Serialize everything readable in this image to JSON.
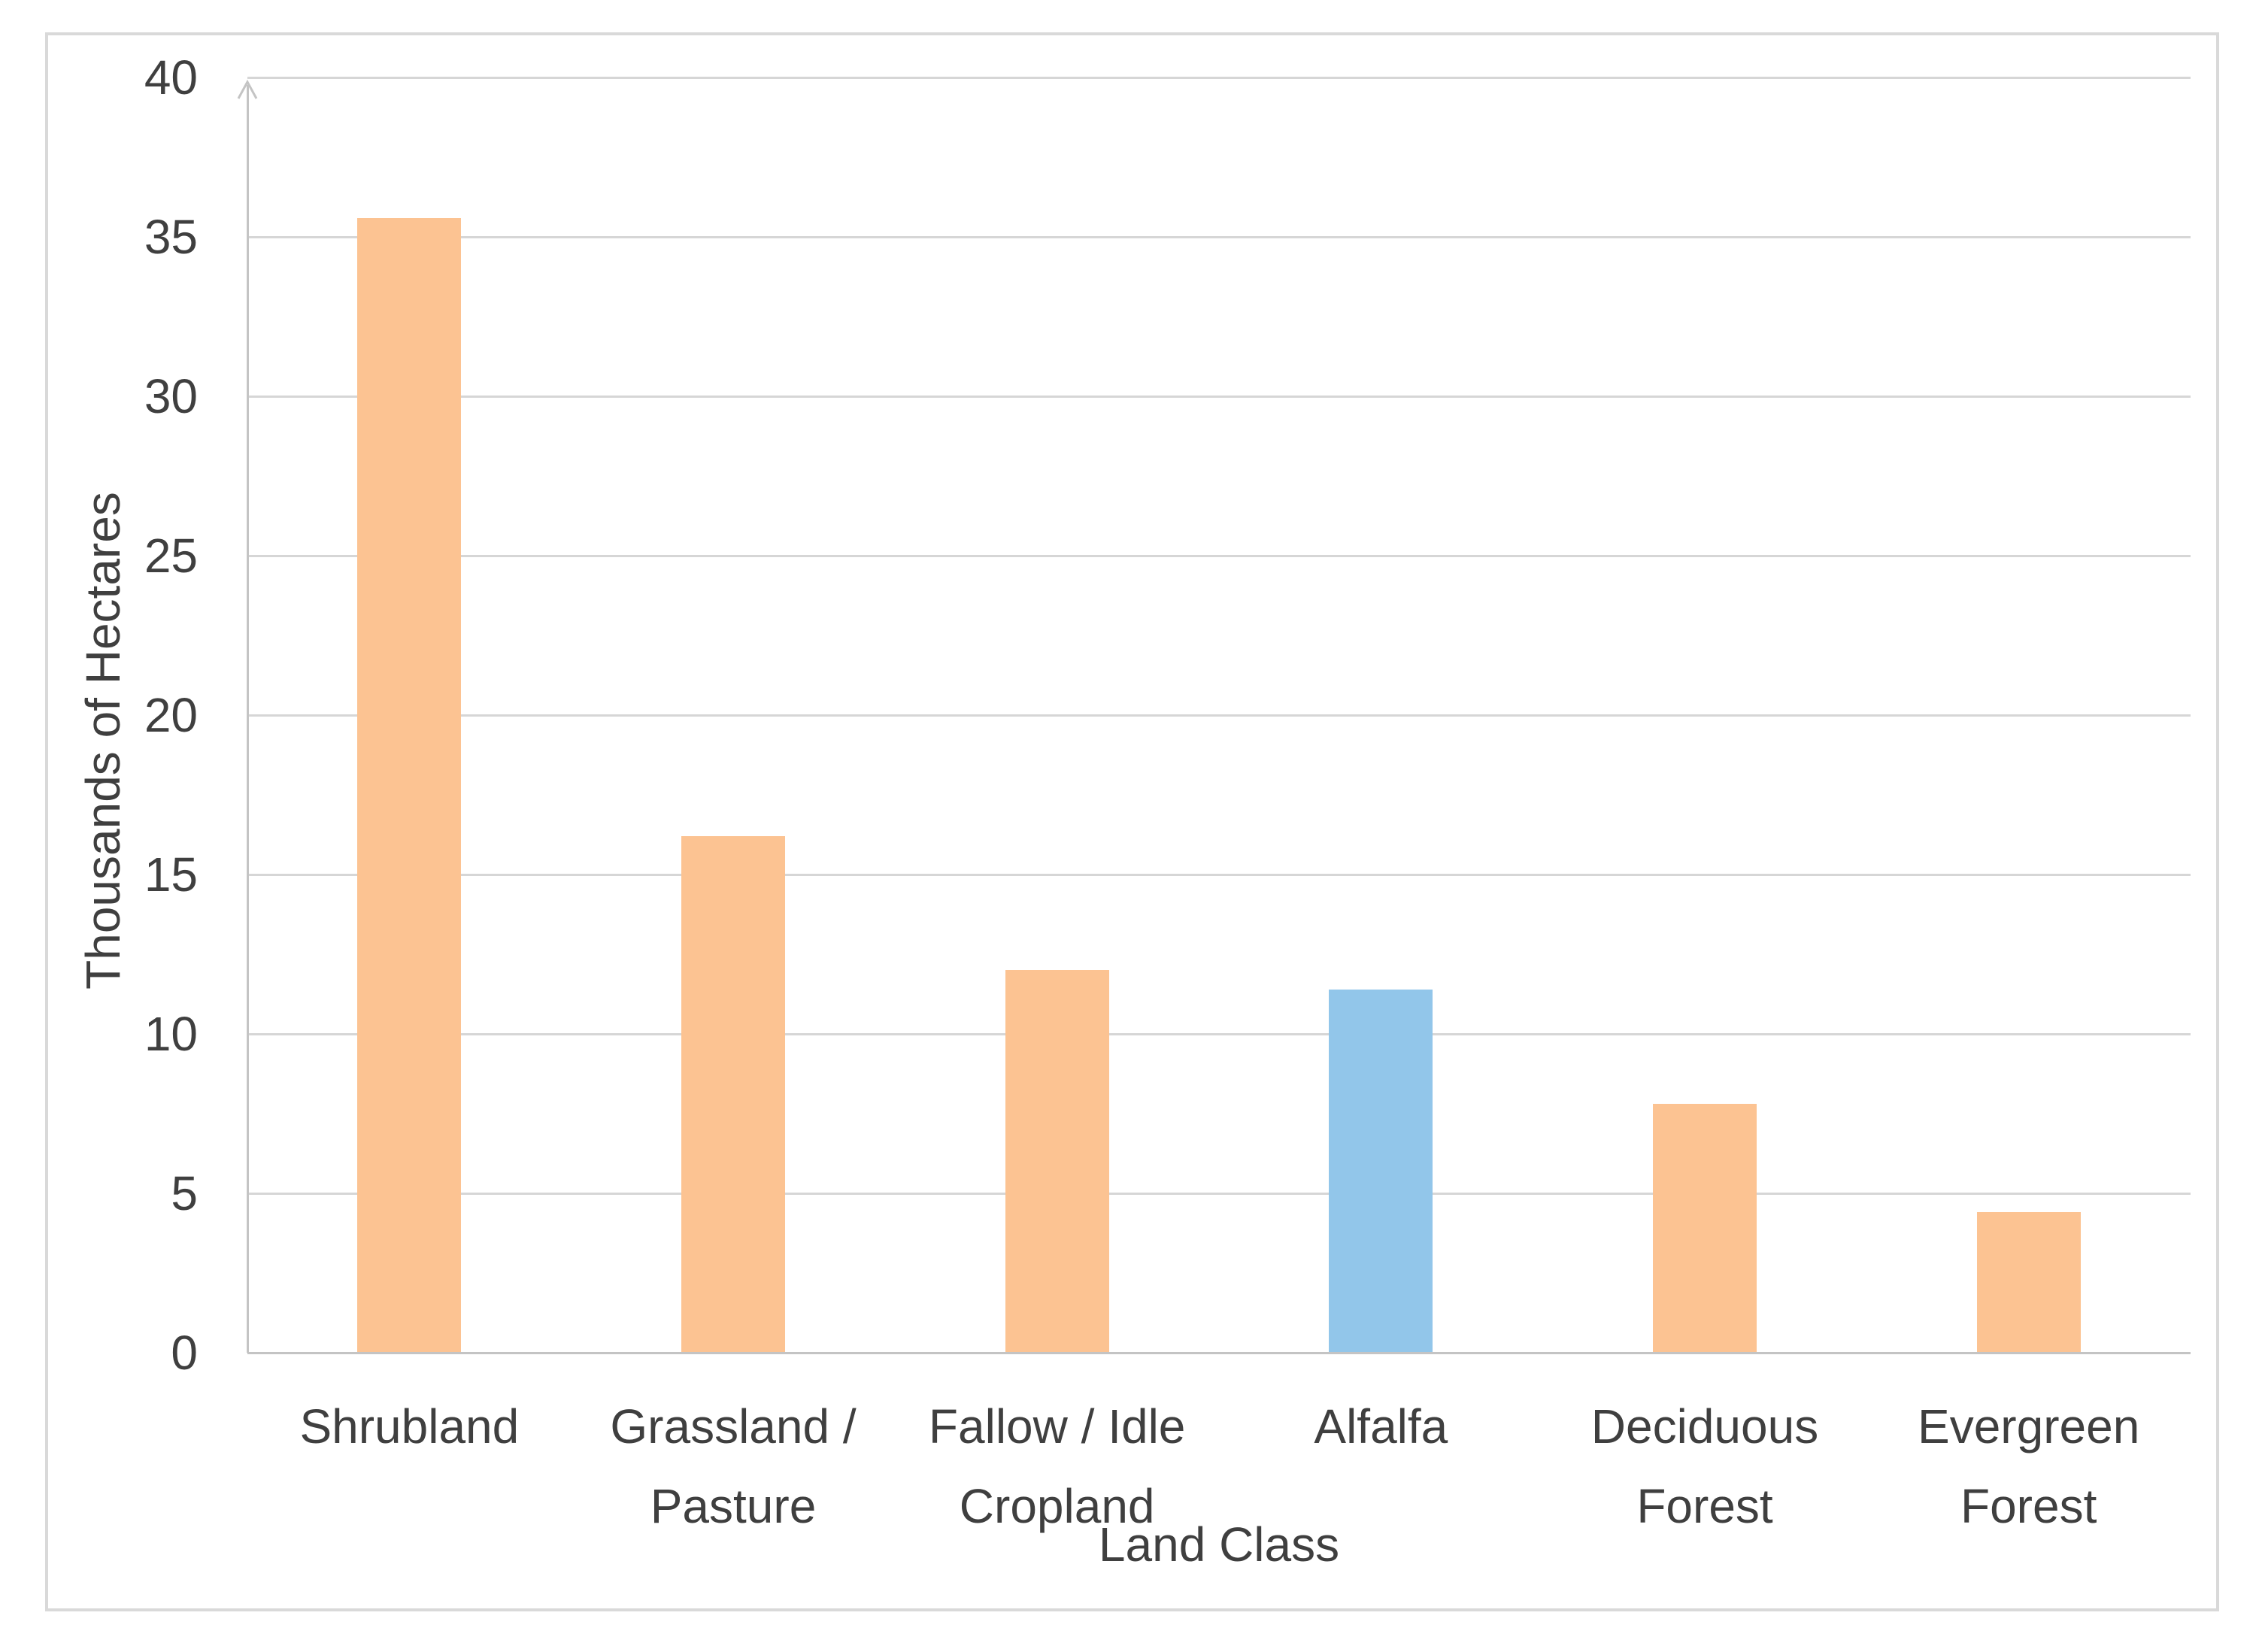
{
  "chart_data": {
    "type": "bar",
    "title": "",
    "xlabel": "Land Class",
    "ylabel": "Thousands of Hectares",
    "categories": [
      "Shrubland",
      "Grassland / Pasture",
      "Fallow / Idle Cropland",
      "Alfalfa",
      "Deciduous Forest",
      "Evergreen Forest"
    ],
    "values": [
      35.6,
      16.2,
      12.0,
      11.4,
      7.8,
      4.4
    ],
    "bar_colors": [
      "#FCC392",
      "#FCC392",
      "#FCC392",
      "#92C6EA",
      "#FCC392",
      "#FCC392"
    ],
    "highlighted_category": "Alfalfa",
    "ylim": [
      0,
      40
    ],
    "yticks": [
      0,
      5,
      10,
      15,
      20,
      25,
      30,
      35,
      40
    ],
    "grid": "horizontal-only",
    "legend": "none"
  },
  "style": {
    "bar_default_color": "#FCC392",
    "bar_highlight_color": "#92C6EA",
    "gridline_color": "#D6D6D6",
    "axis_color": "#C4C4C4",
    "text_color": "#3F3F3F",
    "border_color": "#D9D9D9",
    "background_color": "#FFFFFF"
  }
}
